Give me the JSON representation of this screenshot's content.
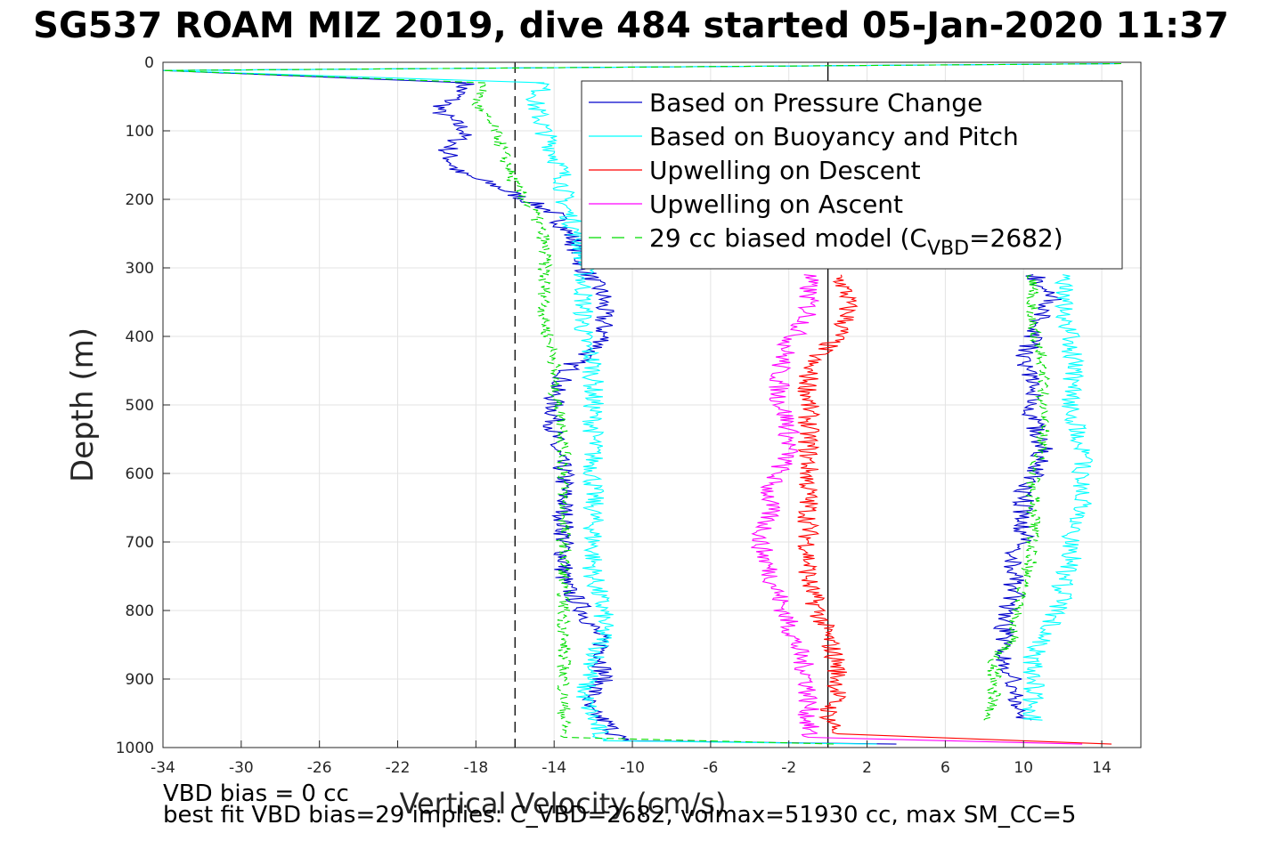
{
  "title": "SG537 ROAM MIZ 2019, dive 484 started 05-Jan-2020 11:37",
  "footer": {
    "line1": "VBD bias = 0 cc",
    "line2": "best fit VBD bias=29 implies: C_VBD=2682, volmax=51930 cc, max SM_CC=5"
  },
  "chart_data": {
    "type": "line",
    "xlabel": "Vertical Velocity (cm/s)",
    "ylabel": "Depth (m)",
    "xlim": [
      -34,
      16
    ],
    "ylim": [
      0,
      1000
    ],
    "y_reversed": true,
    "grid": true,
    "x_ticks": [
      -34,
      -30,
      -26,
      -22,
      -18,
      -14,
      -10,
      -6,
      -2,
      2,
      6,
      10,
      14
    ],
    "y_ticks": [
      0,
      100,
      200,
      300,
      400,
      500,
      600,
      700,
      800,
      900,
      1000
    ],
    "reference_lines": [
      {
        "x": -16,
        "style": "dashed",
        "color": "#000000"
      },
      {
        "x": 0,
        "style": "solid",
        "color": "#000000"
      }
    ],
    "legend_position": "top-right",
    "series": [
      {
        "name": "Based on Pressure Change",
        "color": "#0000cc",
        "style": "solid",
        "descent": [
          [
            -18.5,
            30
          ],
          [
            -19,
            50
          ],
          [
            -20,
            70
          ],
          [
            -18.5,
            100
          ],
          [
            -19.5,
            130
          ],
          [
            -19,
            160
          ],
          [
            -17,
            180
          ],
          [
            -15.5,
            200
          ],
          [
            -14,
            220
          ],
          [
            -13,
            260
          ],
          [
            -12.5,
            300
          ],
          [
            -11.5,
            340
          ],
          [
            -11.5,
            380
          ],
          [
            -11.5,
            410
          ],
          [
            -13,
            440
          ],
          [
            -14,
            480
          ],
          [
            -14,
            520
          ],
          [
            -14,
            560
          ],
          [
            -13.5,
            600
          ],
          [
            -13.5,
            640
          ],
          [
            -13.5,
            700
          ],
          [
            -13.5,
            760
          ],
          [
            -12.5,
            800
          ],
          [
            -11.5,
            850
          ],
          [
            -11.5,
            900
          ],
          [
            -12.5,
            940
          ],
          [
            -11.5,
            960
          ],
          [
            -10.5,
            990
          ]
        ],
        "ascent": [
          [
            10,
            960
          ],
          [
            9.5,
            930
          ],
          [
            9.5,
            900
          ],
          [
            9,
            870
          ],
          [
            9,
            840
          ],
          [
            9,
            810
          ],
          [
            9.5,
            780
          ],
          [
            9.5,
            750
          ],
          [
            9.5,
            720
          ],
          [
            10,
            690
          ],
          [
            10,
            660
          ],
          [
            10,
            630
          ],
          [
            10.5,
            600
          ],
          [
            11,
            560
          ],
          [
            10.5,
            520
          ],
          [
            10.5,
            480
          ],
          [
            10,
            440
          ],
          [
            10.5,
            400
          ],
          [
            11,
            370
          ],
          [
            11.5,
            340
          ],
          [
            10.5,
            310
          ]
        ]
      },
      {
        "name": "Based on Buoyancy and Pitch",
        "color": "#00ffff",
        "style": "solid",
        "descent": [
          [
            -14.5,
            30
          ],
          [
            -15,
            60
          ],
          [
            -14.5,
            100
          ],
          [
            -14,
            130
          ],
          [
            -13.5,
            170
          ],
          [
            -13.5,
            200
          ],
          [
            -13,
            240
          ],
          [
            -12.5,
            280
          ],
          [
            -12.5,
            320
          ],
          [
            -12.5,
            360
          ],
          [
            -12.5,
            400
          ],
          [
            -12,
            440
          ],
          [
            -12,
            480
          ],
          [
            -12,
            520
          ],
          [
            -12,
            560
          ],
          [
            -12,
            600
          ],
          [
            -12,
            650
          ],
          [
            -12,
            700
          ],
          [
            -12,
            750
          ],
          [
            -11.5,
            800
          ],
          [
            -11.5,
            840
          ],
          [
            -12,
            880
          ],
          [
            -12.5,
            920
          ],
          [
            -12,
            960
          ],
          [
            -11.5,
            990
          ]
        ],
        "ascent": [
          [
            10.5,
            960
          ],
          [
            10.5,
            930
          ],
          [
            10.5,
            900
          ],
          [
            10.5,
            870
          ],
          [
            11,
            840
          ],
          [
            11.5,
            810
          ],
          [
            12,
            780
          ],
          [
            12,
            750
          ],
          [
            12.5,
            720
          ],
          [
            12.5,
            690
          ],
          [
            13,
            660
          ],
          [
            13,
            630
          ],
          [
            13,
            600
          ],
          [
            13,
            560
          ],
          [
            12.5,
            520
          ],
          [
            12.5,
            480
          ],
          [
            12.5,
            440
          ],
          [
            12.5,
            400
          ],
          [
            12,
            370
          ],
          [
            12,
            340
          ],
          [
            12,
            310
          ]
        ]
      },
      {
        "name": "Upwelling on Descent",
        "color": "#ff0000",
        "style": "solid",
        "descent": [
          [
            0.5,
            310
          ],
          [
            1,
            340
          ],
          [
            1,
            370
          ],
          [
            0.5,
            400
          ],
          [
            -1,
            440
          ],
          [
            -1,
            480
          ],
          [
            -1,
            520
          ],
          [
            -1,
            560
          ],
          [
            -1,
            600
          ],
          [
            -1,
            640
          ],
          [
            -1,
            680
          ],
          [
            -1,
            720
          ],
          [
            -1,
            760
          ],
          [
            -0.5,
            800
          ],
          [
            0,
            840
          ],
          [
            0.5,
            880
          ],
          [
            0.5,
            920
          ],
          [
            0,
            950
          ],
          [
            0.5,
            980
          ]
        ]
      },
      {
        "name": "Upwelling on Ascent",
        "color": "#ff00ff",
        "style": "solid",
        "descent": [
          [
            -1,
            310
          ],
          [
            -1,
            340
          ],
          [
            -1,
            370
          ],
          [
            -2,
            410
          ],
          [
            -2.5,
            450
          ],
          [
            -2.5,
            490
          ],
          [
            -2,
            530
          ],
          [
            -2,
            570
          ],
          [
            -3,
            620
          ],
          [
            -3,
            660
          ],
          [
            -3.5,
            700
          ],
          [
            -3,
            740
          ],
          [
            -2.5,
            780
          ],
          [
            -2,
            820
          ],
          [
            -1.5,
            860
          ],
          [
            -1,
            900
          ],
          [
            -1,
            930
          ],
          [
            -1,
            960
          ],
          [
            -1,
            985
          ]
        ]
      },
      {
        "name": "29 cc biased model (C_VBD=2682)",
        "color": "#00dd00",
        "style": "dashed",
        "descent": [
          [
            -17.5,
            30
          ],
          [
            -18,
            60
          ],
          [
            -17,
            100
          ],
          [
            -16.5,
            140
          ],
          [
            -16,
            180
          ],
          [
            -15,
            220
          ],
          [
            -14.5,
            260
          ],
          [
            -14.5,
            300
          ],
          [
            -14.5,
            340
          ],
          [
            -14.5,
            380
          ],
          [
            -14,
            430
          ],
          [
            -14,
            480
          ],
          [
            -13.5,
            530
          ],
          [
            -13.5,
            580
          ],
          [
            -13.5,
            630
          ],
          [
            -13.5,
            700
          ],
          [
            -13.5,
            760
          ],
          [
            -13.5,
            800
          ],
          [
            -13.5,
            850
          ],
          [
            -13.5,
            900
          ],
          [
            -13.5,
            950
          ],
          [
            -13.5,
            985
          ]
        ],
        "ascent": [
          [
            8,
            960
          ],
          [
            8.5,
            930
          ],
          [
            8.5,
            900
          ],
          [
            8.5,
            870
          ],
          [
            9.5,
            840
          ],
          [
            9.5,
            810
          ],
          [
            10,
            780
          ],
          [
            10,
            750
          ],
          [
            10.5,
            720
          ],
          [
            10.5,
            690
          ],
          [
            10.5,
            660
          ],
          [
            10.5,
            630
          ],
          [
            10.5,
            600
          ],
          [
            11,
            560
          ],
          [
            11,
            520
          ],
          [
            11,
            480
          ],
          [
            11,
            440
          ],
          [
            10.5,
            400
          ],
          [
            10.5,
            370
          ],
          [
            10.5,
            340
          ],
          [
            10.5,
            310
          ]
        ]
      }
    ]
  }
}
